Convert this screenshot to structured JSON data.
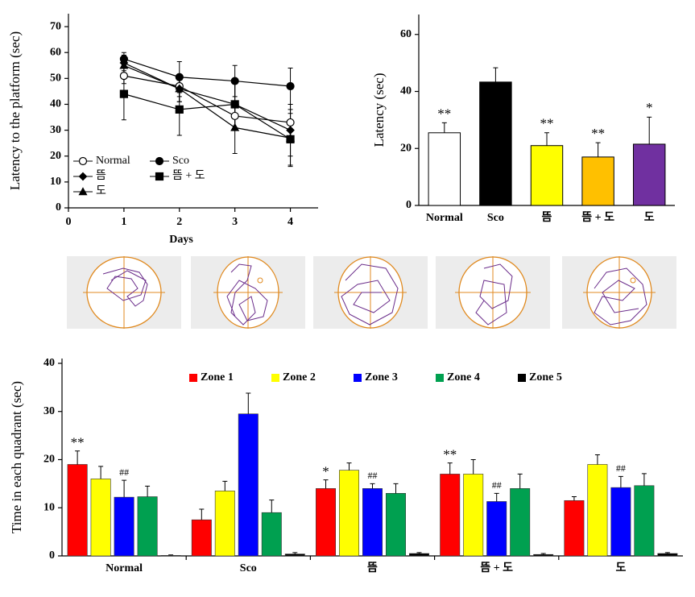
{
  "chart_data": [
    {
      "type": "line",
      "x": [
        1,
        2,
        3,
        4
      ],
      "xlim": [
        0,
        4.5
      ],
      "xticks": [
        0,
        1,
        2,
        3,
        4
      ],
      "ylim": [
        0,
        75
      ],
      "yticks": [
        0,
        10,
        20,
        30,
        40,
        50,
        60,
        70
      ],
      "x_label": "Days",
      "y_label": "Latency  to the platform (sec)",
      "legend": "lower left",
      "series": [
        {
          "name": "Normal",
          "color": "#000000",
          "marker": "open-circle",
          "values": [
            51,
            47,
            35.5,
            33
          ],
          "errors": [
            3,
            4,
            5,
            7
          ]
        },
        {
          "name": "Sco",
          "color": "#000000",
          "marker": "circle",
          "values": [
            57.5,
            50.5,
            49,
            47
          ],
          "errors": [
            2.5,
            6,
            6,
            7
          ]
        },
        {
          "name": "뜸",
          "color": "#000000",
          "marker": "diamond",
          "values": [
            56,
            46,
            40,
            30
          ],
          "errors": [
            3,
            5,
            9,
            10
          ]
        },
        {
          "name": "뜸 + 도",
          "color": "#000000",
          "marker": "square",
          "values": [
            44,
            38,
            40,
            26.5
          ],
          "errors": [
            10,
            10,
            9,
            10
          ]
        },
        {
          "name": "도",
          "color": "#000000",
          "marker": "triangle",
          "values": [
            55,
            46,
            31,
            27
          ],
          "errors": [
            3,
            5,
            10,
            11
          ]
        }
      ]
    },
    {
      "type": "bar",
      "categories": [
        "Normal",
        "Sco",
        "뜸",
        "뜸 + 도",
        "도"
      ],
      "values": [
        25.5,
        43.3,
        21,
        17,
        21.5
      ],
      "errors": [
        3.5,
        5,
        4.5,
        5,
        9.5
      ],
      "colors": [
        "#ffffff",
        "#000000",
        "#ffff00",
        "#ffc000",
        "#7030a0"
      ],
      "annotations": [
        "**",
        null,
        "**",
        "**",
        "*"
      ],
      "ylim": [
        0,
        67
      ],
      "yticks": [
        0,
        20,
        40,
        60
      ],
      "y_label": "Latency  (sec)"
    },
    {
      "type": "grouped_bar",
      "categories": [
        "Normal",
        "Sco",
        "뜸",
        "뜸 + 도",
        "도"
      ],
      "ylim": [
        0,
        41
      ],
      "yticks": [
        0,
        10,
        20,
        30,
        40
      ],
      "y_label": "Time in each quadrant  (sec)",
      "legend": "top",
      "series": [
        {
          "name": "Zone 1",
          "color": "#ff0000",
          "values": [
            19,
            7.5,
            14,
            17,
            11.5
          ],
          "errors": [
            2.8,
            2.2,
            1.8,
            2.3,
            0.8
          ],
          "annotations": [
            "**",
            null,
            "*",
            "**",
            null
          ]
        },
        {
          "name": "Zone 2",
          "color": "#ffff00",
          "values": [
            16,
            13.5,
            17.8,
            17,
            19
          ],
          "errors": [
            2.6,
            2,
            1.5,
            3,
            2
          ]
        },
        {
          "name": "Zone 3",
          "color": "#0000ff",
          "values": [
            12.2,
            29.5,
            14,
            11.3,
            14.2
          ],
          "errors": [
            3.5,
            4.3,
            1,
            1.7,
            2.3
          ],
          "annotations": [
            "##",
            null,
            "##",
            "##",
            "##"
          ]
        },
        {
          "name": "Zone 4",
          "color": "#00a050",
          "values": [
            12.3,
            9,
            13,
            14,
            14.6
          ],
          "errors": [
            2.2,
            2.6,
            2,
            3,
            2.5
          ]
        },
        {
          "name": "Zone 5",
          "color": "#000000",
          "values": [
            0.1,
            0.4,
            0.5,
            0.3,
            0.5
          ],
          "errors": [
            0.1,
            0.3,
            0.2,
            0.2,
            0.2
          ]
        }
      ]
    }
  ]
}
